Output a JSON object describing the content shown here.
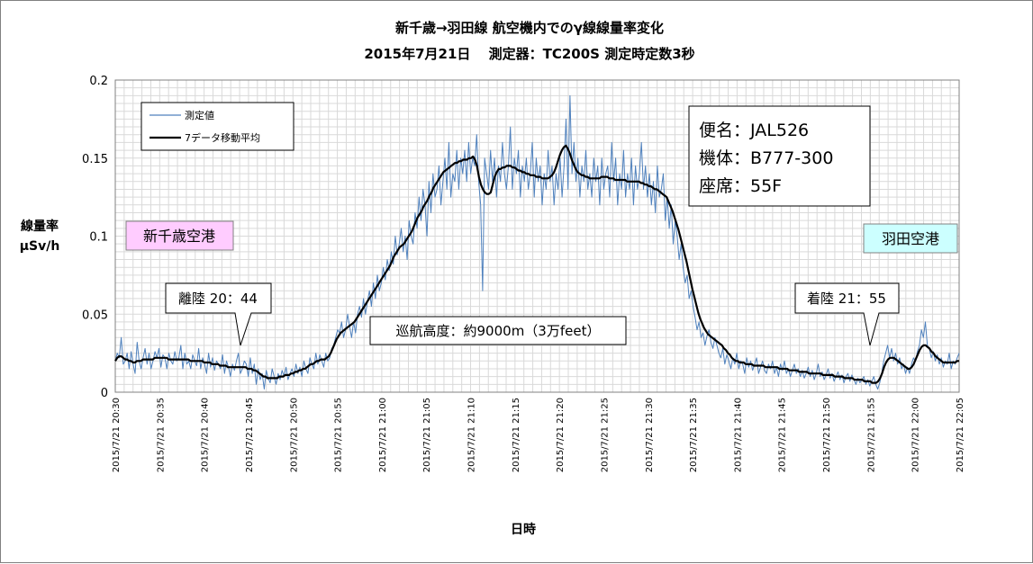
{
  "chart_data": {
    "type": "line",
    "title": "新千歳→羽田線 航空機内でのγ線線量率変化",
    "subtitle": "2015年7月21日　 測定器：TC200S 測定時定数3秒",
    "xlabel": "日時",
    "ylabel_lines": [
      "線量率",
      "μSv/h"
    ],
    "ylim": [
      0,
      0.2
    ],
    "y_ticks": [
      0,
      0.05,
      0.1,
      0.15,
      0.2
    ],
    "y_tick_labels": [
      "0",
      "0.05",
      "0.1",
      "0.15",
      "0.2"
    ],
    "x_tick_labels": [
      "2015/7/21 20:30",
      "2015/7/21 20:35",
      "2015/7/21 20:40",
      "2015/7/21 20:45",
      "2015/7/21 20:50",
      "2015/7/21 20:55",
      "2015/7/21 21:00",
      "2015/7/21 21:05",
      "2015/7/21 21:10",
      "2015/7/21 21:15",
      "2015/7/21 21:20",
      "2015/7/21 21:25",
      "2015/7/21 21:30",
      "2015/7/21 21:35",
      "2015/7/21 21:40",
      "2015/7/21 21:45",
      "2015/7/21 21:50",
      "2015/7/21 21:55",
      "2015/7/21 22:00",
      "2015/7/21 22:05"
    ],
    "grid": true,
    "legend_position": "top-left",
    "series": [
      {
        "name": "測定値",
        "color": "#4f81bd",
        "x_range": [
          "2015/7/21 20:30",
          "2015/7/21 22:05"
        ],
        "sample_interval_seconds": 15,
        "values": [
          0.02,
          0.025,
          0.022,
          0.035,
          0.018,
          0.02,
          0.025,
          0.015,
          0.026,
          0.018,
          0.012,
          0.032,
          0.02,
          0.015,
          0.022,
          0.028,
          0.018,
          0.025,
          0.015,
          0.02,
          0.026,
          0.022,
          0.028,
          0.016,
          0.024,
          0.022,
          0.015,
          0.025,
          0.02,
          0.018,
          0.026,
          0.02,
          0.022,
          0.03,
          0.015,
          0.025,
          0.018,
          0.02,
          0.015,
          0.024,
          0.02,
          0.017,
          0.028,
          0.015,
          0.022,
          0.018,
          0.012,
          0.025,
          0.016,
          0.022,
          0.014,
          0.02,
          0.018,
          0.015,
          0.024,
          0.012,
          0.02,
          0.016,
          0.01,
          0.018,
          0.014,
          0.02,
          0.025,
          0.012,
          0.015,
          0.02,
          0.018,
          0.01,
          0.022,
          0.012,
          0.018,
          0.005,
          0.015,
          0.008,
          0.012,
          0.002,
          0.014,
          0.009,
          0.006,
          0.015,
          0.01,
          0.005,
          0.012,
          0.008,
          0.014,
          0.01,
          0.016,
          0.008,
          0.012,
          0.015,
          0.01,
          0.018,
          0.012,
          0.016,
          0.01,
          0.02,
          0.015,
          0.012,
          0.022,
          0.018,
          0.015,
          0.025,
          0.018,
          0.024,
          0.02,
          0.016,
          0.025,
          0.02,
          0.022,
          0.028,
          0.03,
          0.035,
          0.04,
          0.038,
          0.045,
          0.035,
          0.04,
          0.05,
          0.042,
          0.035,
          0.045,
          0.038,
          0.05,
          0.055,
          0.048,
          0.06,
          0.05,
          0.058,
          0.065,
          0.055,
          0.07,
          0.06,
          0.075,
          0.065,
          0.07,
          0.08,
          0.072,
          0.085,
          0.078,
          0.09,
          0.082,
          0.1,
          0.088,
          0.095,
          0.105,
          0.09,
          0.1,
          0.085,
          0.11,
          0.1,
          0.095,
          0.115,
          0.105,
          0.125,
          0.11,
          0.13,
          0.12,
          0.1,
          0.135,
          0.115,
          0.14,
          0.125,
          0.13,
          0.145,
          0.12,
          0.135,
          0.15,
          0.13,
          0.16,
          0.125,
          0.14,
          0.135,
          0.155,
          0.13,
          0.15,
          0.14,
          0.155,
          0.135,
          0.16,
          0.14,
          0.15,
          0.145,
          0.165,
          0.135,
          0.12,
          0.065,
          0.15,
          0.14,
          0.13,
          0.155,
          0.135,
          0.15,
          0.125,
          0.145,
          0.135,
          0.16,
          0.14,
          0.13,
          0.145,
          0.17,
          0.13,
          0.15,
          0.14,
          0.155,
          0.125,
          0.145,
          0.135,
          0.15,
          0.13,
          0.14,
          0.16,
          0.125,
          0.15,
          0.135,
          0.145,
          0.12,
          0.14,
          0.13,
          0.155,
          0.135,
          0.145,
          0.12,
          0.14,
          0.13,
          0.15,
          0.125,
          0.145,
          0.175,
          0.13,
          0.19,
          0.14,
          0.16,
          0.135,
          0.15,
          0.125,
          0.145,
          0.135,
          0.155,
          0.13,
          0.14,
          0.125,
          0.15,
          0.135,
          0.145,
          0.12,
          0.15,
          0.13,
          0.14,
          0.145,
          0.125,
          0.16,
          0.135,
          0.15,
          0.12,
          0.14,
          0.13,
          0.155,
          0.125,
          0.14,
          0.13,
          0.15,
          0.12,
          0.145,
          0.13,
          0.14,
          0.16,
          0.13,
          0.145,
          0.125,
          0.14,
          0.12,
          0.135,
          0.115,
          0.145,
          0.125,
          0.13,
          0.14,
          0.11,
          0.125,
          0.105,
          0.12,
          0.095,
          0.11,
          0.1,
          0.085,
          0.095,
          0.08,
          0.07,
          0.075,
          0.06,
          0.065,
          0.055,
          0.048,
          0.04,
          0.045,
          0.035,
          0.038,
          0.03,
          0.036,
          0.04,
          0.032,
          0.028,
          0.035,
          0.03,
          0.025,
          0.022,
          0.028,
          0.018,
          0.024,
          0.02,
          0.015,
          0.022,
          0.018,
          0.025,
          0.015,
          0.02,
          0.018,
          0.012,
          0.022,
          0.016,
          0.02,
          0.014,
          0.018,
          0.022,
          0.012,
          0.016,
          0.02,
          0.014,
          0.012,
          0.018,
          0.015,
          0.02,
          0.012,
          0.016,
          0.01,
          0.018,
          0.014,
          0.02,
          0.012,
          0.015,
          0.01,
          0.014,
          0.018,
          0.012,
          0.015,
          0.01,
          0.014,
          0.009,
          0.012,
          0.016,
          0.01,
          0.014,
          0.008,
          0.012,
          0.018,
          0.01,
          0.013,
          0.008,
          0.011,
          0.015,
          0.009,
          0.012,
          0.007,
          0.01,
          0.013,
          0.008,
          0.011,
          0.006,
          0.01,
          0.012,
          0.007,
          0.011,
          0.008,
          0.005,
          0.009,
          0.006,
          0.008,
          0.01,
          0.005,
          0.008,
          0.004,
          0.007,
          0.01,
          0.005,
          0.002,
          0.006,
          0.012,
          0.02,
          0.025,
          0.03,
          0.022,
          0.028,
          0.02,
          0.025,
          0.018,
          0.022,
          0.015,
          0.018,
          0.012,
          0.016,
          0.012,
          0.018,
          0.022,
          0.02,
          0.026,
          0.03,
          0.04,
          0.035,
          0.045,
          0.03,
          0.028,
          0.022,
          0.026,
          0.02,
          0.024,
          0.018,
          0.022,
          0.016,
          0.02,
          0.018,
          0.025,
          0.015,
          0.02,
          0.018,
          0.022,
          0.025
        ]
      },
      {
        "name": "7データ移動平均",
        "color": "#000000",
        "x_range": [
          "2015/7/21 20:30",
          "2015/7/21 22:05"
        ],
        "sample_interval_seconds": 15,
        "values": [
          0.02,
          0.022,
          0.023,
          0.023,
          0.022,
          0.021,
          0.021,
          0.02,
          0.02,
          0.019,
          0.019,
          0.02,
          0.02,
          0.02,
          0.021,
          0.021,
          0.021,
          0.021,
          0.021,
          0.021,
          0.022,
          0.022,
          0.022,
          0.022,
          0.022,
          0.022,
          0.022,
          0.021,
          0.021,
          0.021,
          0.021,
          0.021,
          0.021,
          0.021,
          0.021,
          0.021,
          0.021,
          0.021,
          0.02,
          0.02,
          0.02,
          0.02,
          0.02,
          0.02,
          0.02,
          0.019,
          0.019,
          0.019,
          0.019,
          0.018,
          0.018,
          0.018,
          0.018,
          0.017,
          0.017,
          0.017,
          0.017,
          0.016,
          0.016,
          0.016,
          0.016,
          0.016,
          0.016,
          0.016,
          0.016,
          0.016,
          0.016,
          0.015,
          0.015,
          0.015,
          0.014,
          0.014,
          0.013,
          0.012,
          0.011,
          0.01,
          0.01,
          0.009,
          0.009,
          0.009,
          0.009,
          0.009,
          0.009,
          0.01,
          0.01,
          0.01,
          0.011,
          0.011,
          0.011,
          0.012,
          0.012,
          0.013,
          0.013,
          0.014,
          0.014,
          0.015,
          0.015,
          0.016,
          0.017,
          0.018,
          0.018,
          0.019,
          0.02,
          0.02,
          0.021,
          0.021,
          0.021,
          0.022,
          0.023,
          0.025,
          0.028,
          0.031,
          0.034,
          0.036,
          0.038,
          0.039,
          0.04,
          0.041,
          0.042,
          0.043,
          0.044,
          0.045,
          0.047,
          0.049,
          0.051,
          0.053,
          0.055,
          0.057,
          0.059,
          0.061,
          0.063,
          0.065,
          0.067,
          0.069,
          0.071,
          0.073,
          0.075,
          0.077,
          0.079,
          0.081,
          0.084,
          0.087,
          0.089,
          0.091,
          0.093,
          0.094,
          0.095,
          0.097,
          0.099,
          0.101,
          0.103,
          0.106,
          0.109,
          0.112,
          0.114,
          0.116,
          0.119,
          0.121,
          0.123,
          0.126,
          0.128,
          0.131,
          0.133,
          0.135,
          0.137,
          0.139,
          0.141,
          0.142,
          0.143,
          0.144,
          0.145,
          0.146,
          0.147,
          0.147,
          0.148,
          0.148,
          0.149,
          0.149,
          0.149,
          0.15,
          0.15,
          0.151,
          0.149,
          0.145,
          0.138,
          0.133,
          0.13,
          0.128,
          0.127,
          0.127,
          0.128,
          0.133,
          0.138,
          0.141,
          0.143,
          0.143,
          0.144,
          0.144,
          0.145,
          0.145,
          0.145,
          0.144,
          0.144,
          0.143,
          0.142,
          0.142,
          0.141,
          0.141,
          0.14,
          0.14,
          0.139,
          0.139,
          0.139,
          0.138,
          0.138,
          0.138,
          0.137,
          0.137,
          0.137,
          0.137,
          0.138,
          0.139,
          0.141,
          0.144,
          0.148,
          0.152,
          0.155,
          0.157,
          0.158,
          0.156,
          0.153,
          0.149,
          0.146,
          0.143,
          0.141,
          0.14,
          0.139,
          0.139,
          0.138,
          0.138,
          0.137,
          0.137,
          0.137,
          0.137,
          0.137,
          0.137,
          0.138,
          0.138,
          0.138,
          0.138,
          0.137,
          0.137,
          0.137,
          0.136,
          0.136,
          0.136,
          0.136,
          0.136,
          0.136,
          0.135,
          0.135,
          0.135,
          0.135,
          0.135,
          0.135,
          0.135,
          0.134,
          0.134,
          0.133,
          0.133,
          0.132,
          0.132,
          0.131,
          0.13,
          0.13,
          0.129,
          0.128,
          0.127,
          0.126,
          0.125,
          0.122,
          0.119,
          0.116,
          0.112,
          0.108,
          0.104,
          0.099,
          0.094,
          0.089,
          0.084,
          0.078,
          0.072,
          0.066,
          0.061,
          0.056,
          0.051,
          0.047,
          0.044,
          0.041,
          0.039,
          0.037,
          0.036,
          0.035,
          0.034,
          0.033,
          0.032,
          0.031,
          0.03,
          0.028,
          0.027,
          0.025,
          0.024,
          0.022,
          0.021,
          0.02,
          0.02,
          0.019,
          0.019,
          0.019,
          0.018,
          0.018,
          0.018,
          0.018,
          0.017,
          0.017,
          0.017,
          0.017,
          0.017,
          0.017,
          0.016,
          0.016,
          0.016,
          0.016,
          0.016,
          0.016,
          0.016,
          0.015,
          0.015,
          0.015,
          0.015,
          0.015,
          0.014,
          0.014,
          0.014,
          0.014,
          0.014,
          0.013,
          0.013,
          0.013,
          0.013,
          0.013,
          0.012,
          0.012,
          0.012,
          0.012,
          0.012,
          0.012,
          0.012,
          0.011,
          0.011,
          0.011,
          0.011,
          0.011,
          0.011,
          0.01,
          0.01,
          0.01,
          0.01,
          0.01,
          0.009,
          0.009,
          0.009,
          0.009,
          0.009,
          0.008,
          0.008,
          0.008,
          0.008,
          0.008,
          0.007,
          0.007,
          0.007,
          0.007,
          0.006,
          0.006,
          0.006,
          0.007,
          0.009,
          0.012,
          0.016,
          0.019,
          0.021,
          0.022,
          0.022,
          0.022,
          0.021,
          0.02,
          0.019,
          0.018,
          0.017,
          0.016,
          0.015,
          0.015,
          0.016,
          0.018,
          0.021,
          0.024,
          0.027,
          0.029,
          0.03,
          0.03,
          0.029,
          0.028,
          0.026,
          0.025,
          0.023,
          0.022,
          0.021,
          0.02,
          0.019,
          0.019,
          0.019,
          0.019,
          0.019,
          0.019,
          0.019,
          0.02,
          0.02
        ]
      }
    ],
    "annotations": {
      "takeoff": "離陸 20：44",
      "landing": "着陸 21：55",
      "cruise": "巡航高度：約9000m（3万feet）",
      "origin_airport": "新千歳空港",
      "destination_airport": "羽田空港",
      "flight_lines": [
        "便名：JAL526",
        "機体：B777-300",
        "座席：55F"
      ]
    }
  }
}
